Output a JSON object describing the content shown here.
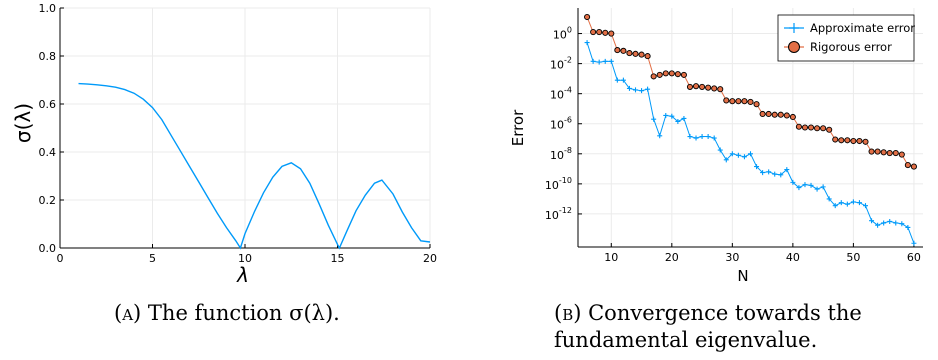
{
  "figure_a": {
    "caption_letter": "(a)",
    "caption_text": "The function σ(λ).",
    "chart_data": {
      "type": "line",
      "xlabel": "λ",
      "ylabel": "σ(λ)",
      "xlim": [
        0,
        20
      ],
      "ylim": [
        0,
        1.0
      ],
      "xticks": [
        "0",
        "5",
        "10",
        "15",
        "20"
      ],
      "yticks": [
        "0.0",
        "0.2",
        "0.4",
        "0.6",
        "0.8",
        "1.0"
      ],
      "grid": true,
      "series": [
        {
          "color": "#009af9",
          "x": [
            1,
            1.5,
            2,
            2.5,
            3,
            3.5,
            4,
            4.5,
            5,
            5.5,
            6,
            6.5,
            7,
            7.5,
            8,
            8.5,
            9,
            9.5,
            9.75,
            10,
            10.5,
            11,
            11.5,
            12,
            12.5,
            13,
            13.5,
            14,
            14.5,
            15,
            15.1,
            15.5,
            16,
            16.5,
            17,
            17.4,
            18,
            18.5,
            19,
            19.5,
            20
          ],
          "y": [
            0.685,
            0.683,
            0.68,
            0.676,
            0.67,
            0.66,
            0.645,
            0.62,
            0.585,
            0.535,
            0.47,
            0.405,
            0.34,
            0.275,
            0.21,
            0.145,
            0.085,
            0.03,
            0.0,
            0.06,
            0.15,
            0.23,
            0.295,
            0.34,
            0.355,
            0.33,
            0.27,
            0.185,
            0.095,
            0.015,
            0.0,
            0.07,
            0.155,
            0.22,
            0.27,
            0.283,
            0.225,
            0.15,
            0.085,
            0.03,
            0.025
          ]
        }
      ]
    }
  },
  "figure_b": {
    "caption_letter": "(b)",
    "caption_text": "Convergence towards the fundamental eigenvalue.",
    "chart_data": {
      "type": "line",
      "xlabel": "N",
      "ylabel": "Error",
      "xlim": [
        4.5,
        61.5
      ],
      "ylog": true,
      "ylim_exponent": [
        -14.2,
        1.7
      ],
      "xticks": [
        "10",
        "20",
        "30",
        "40",
        "50",
        "60"
      ],
      "yticks": [
        {
          "base": "10",
          "exp": "0",
          "value": 0
        },
        {
          "base": "10",
          "exp": "-2",
          "value": -2
        },
        {
          "base": "10",
          "exp": "-4",
          "value": -4
        },
        {
          "base": "10",
          "exp": "-6",
          "value": -6
        },
        {
          "base": "10",
          "exp": "-8",
          "value": -8
        },
        {
          "base": "10",
          "exp": "-10",
          "value": -10
        },
        {
          "base": "10",
          "exp": "-12",
          "value": -12
        }
      ],
      "grid": true,
      "legend_position": "top-right",
      "series": [
        {
          "name": "Approximate error",
          "color": "#009af9",
          "marker": "cross",
          "x": [
            6,
            7,
            8,
            9,
            10,
            11,
            12,
            13,
            14,
            15,
            16,
            17,
            18,
            19,
            20,
            21,
            22,
            23,
            24,
            25,
            26,
            27,
            28,
            29,
            30,
            31,
            32,
            33,
            34,
            35,
            36,
            37,
            38,
            39,
            40,
            41,
            42,
            43,
            44,
            45,
            46,
            47,
            48,
            49,
            50,
            51,
            52,
            53,
            54,
            55,
            56,
            57,
            58,
            59,
            60
          ],
          "log10_error": [
            -0.6,
            -1.85,
            -1.9,
            -1.85,
            -1.85,
            -3.1,
            -3.1,
            -3.65,
            -3.75,
            -3.8,
            -3.7,
            -5.7,
            -6.8,
            -5.45,
            -5.5,
            -5.85,
            -5.65,
            -6.85,
            -6.95,
            -6.85,
            -6.85,
            -6.95,
            -7.75,
            -8.4,
            -8.0,
            -8.1,
            -8.2,
            -8.0,
            -8.85,
            -9.25,
            -9.2,
            -9.35,
            -9.4,
            -9.05,
            -9.9,
            -10.25,
            -10.05,
            -10.1,
            -10.35,
            -10.2,
            -11.0,
            -11.45,
            -11.25,
            -11.35,
            -11.2,
            -11.25,
            -11.45,
            -12.45,
            -12.75,
            -12.6,
            -12.5,
            -12.6,
            -12.65,
            -12.9,
            -13.95
          ]
        },
        {
          "name": "Rigorous error",
          "color": "#e26f46",
          "marker": "circle",
          "x": [
            6,
            7,
            8,
            9,
            10,
            11,
            12,
            13,
            14,
            15,
            16,
            17,
            18,
            19,
            20,
            21,
            22,
            23,
            24,
            25,
            26,
            27,
            28,
            29,
            30,
            31,
            32,
            33,
            34,
            35,
            36,
            37,
            38,
            39,
            40,
            41,
            42,
            43,
            44,
            45,
            46,
            47,
            48,
            49,
            50,
            51,
            52,
            53,
            54,
            55,
            56,
            57,
            58,
            59,
            60
          ],
          "log10_error": [
            1.1,
            0.1,
            0.1,
            0.05,
            0.0,
            -1.1,
            -1.15,
            -1.3,
            -1.35,
            -1.4,
            -1.5,
            -2.85,
            -2.75,
            -2.65,
            -2.65,
            -2.7,
            -2.75,
            -3.55,
            -3.5,
            -3.55,
            -3.6,
            -3.65,
            -3.7,
            -4.45,
            -4.5,
            -4.5,
            -4.5,
            -4.55,
            -4.7,
            -5.35,
            -5.35,
            -5.4,
            -5.4,
            -5.45,
            -5.55,
            -6.2,
            -6.25,
            -6.25,
            -6.3,
            -6.3,
            -6.4,
            -7.05,
            -7.1,
            -7.1,
            -7.15,
            -7.15,
            -7.2,
            -7.85,
            -7.85,
            -7.9,
            -7.95,
            -7.95,
            -8.05,
            -8.75,
            -8.85
          ]
        }
      ]
    }
  }
}
